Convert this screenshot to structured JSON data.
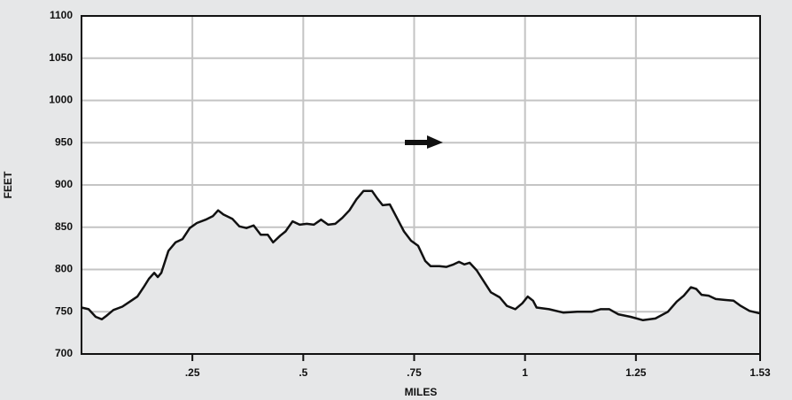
{
  "chart_data": {
    "type": "area",
    "x_label": "MILES",
    "y_label": "FEET",
    "xlim": [
      0,
      1.53
    ],
    "ylim": [
      700,
      1100
    ],
    "xticks": [
      {
        "value": 0.25,
        "label": ".25"
      },
      {
        "value": 0.5,
        "label": ".5"
      },
      {
        "value": 0.75,
        "label": ".75"
      },
      1,
      1.25,
      1.53
    ],
    "yticks": [
      700,
      750,
      800,
      850,
      900,
      950,
      1000,
      1050,
      1100
    ],
    "grid": true,
    "color": "#111111",
    "fill": "#e6e7e8",
    "x": [
      0,
      0.016,
      0.032,
      0.046,
      0.056,
      0.072,
      0.092,
      0.112,
      0.126,
      0.14,
      0.152,
      0.164,
      0.172,
      0.18,
      0.196,
      0.212,
      0.228,
      0.244,
      0.26,
      0.28,
      0.296,
      0.308,
      0.32,
      0.34,
      0.356,
      0.372,
      0.388,
      0.404,
      0.42,
      0.432,
      0.448,
      0.46,
      0.476,
      0.492,
      0.508,
      0.524,
      0.54,
      0.556,
      0.572,
      0.588,
      0.604,
      0.62,
      0.636,
      0.655,
      0.667,
      0.679,
      0.695,
      0.711,
      0.727,
      0.743,
      0.759,
      0.775,
      0.787,
      0.807,
      0.823,
      0.839,
      0.851,
      0.863,
      0.875,
      0.891,
      0.907,
      0.923,
      0.943,
      0.959,
      0.978,
      0.994,
      1.006,
      1.018,
      1.026,
      1.054,
      1.086,
      1.118,
      1.15,
      1.17,
      1.19,
      1.21,
      1.238,
      1.266,
      1.294,
      1.322,
      1.342,
      1.358,
      1.374,
      1.386,
      1.398,
      1.414,
      1.43,
      1.45,
      1.47,
      1.486,
      1.506,
      1.53
    ],
    "values": [
      755,
      753,
      744,
      741,
      745,
      752,
      756,
      763,
      768,
      779,
      789,
      796,
      791,
      796,
      822,
      832,
      836,
      849,
      855,
      859,
      863,
      870,
      865,
      860,
      851,
      849,
      852,
      841,
      841,
      832,
      840,
      845,
      857,
      853,
      854,
      853,
      859,
      853,
      854,
      861,
      870,
      883,
      893,
      893,
      884,
      876,
      877,
      861,
      845,
      834,
      828,
      810,
      804,
      804,
      803,
      806,
      809,
      806,
      808,
      799,
      786,
      773,
      767,
      757,
      753,
      760,
      768,
      763,
      755,
      753,
      749,
      750,
      750,
      753,
      753,
      747,
      744,
      740,
      742,
      750,
      762,
      769,
      779,
      777,
      770,
      769,
      765,
      764,
      763,
      757,
      751,
      748
    ]
  }
}
